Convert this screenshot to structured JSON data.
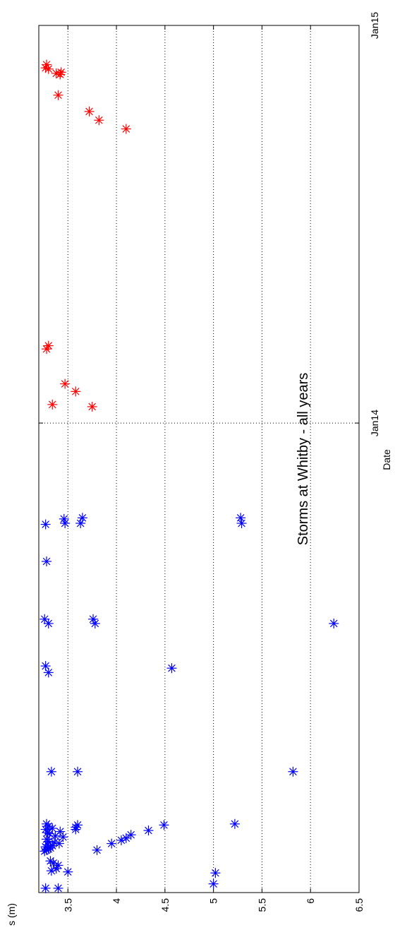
{
  "chart_data": {
    "type": "scatter",
    "title": "Storms at Whitby - all years",
    "xlabel": "Date",
    "ylabel": "Hs (m)",
    "orientation": "rotated-90-ccw",
    "x_tick_labels": [
      "Jan14",
      "Jan15"
    ],
    "y_tick_labels": [
      "3.5",
      "4",
      "4.5",
      "5",
      "5.5",
      "6",
      "6.5"
    ],
    "y_ticks": [
      3.5,
      4,
      4.5,
      5,
      5.5,
      6,
      6.5
    ],
    "ylim": [
      3.2,
      6.5
    ],
    "xlim": [
      "2012-10-27",
      "2015-01-01"
    ],
    "grid": "horizontal-dotted",
    "marker": "asterisk",
    "series": [
      {
        "color": "#0000ff",
        "points": [
          {
            "x": "2012-10-31",
            "y": 3.4
          },
          {
            "x": "2012-10-31",
            "y": 3.27
          },
          {
            "x": "2012-11-04",
            "y": 5.0
          },
          {
            "x": "2012-11-14",
            "y": 5.02
          },
          {
            "x": "2012-11-15",
            "y": 3.5
          },
          {
            "x": "2012-11-16",
            "y": 3.33
          },
          {
            "x": "2012-11-18",
            "y": 3.38
          },
          {
            "x": "2012-11-21",
            "y": 3.4
          },
          {
            "x": "2012-11-23",
            "y": 3.35
          },
          {
            "x": "2012-11-25",
            "y": 3.32
          },
          {
            "x": "2012-12-04",
            "y": 3.26
          },
          {
            "x": "2012-12-05",
            "y": 3.28
          },
          {
            "x": "2012-12-06",
            "y": 3.3
          },
          {
            "x": "2012-12-07",
            "y": 3.32
          },
          {
            "x": "2012-12-08",
            "y": 3.27
          },
          {
            "x": "2012-12-09",
            "y": 3.34
          },
          {
            "x": "2012-12-10",
            "y": 3.29
          },
          {
            "x": "2012-12-11",
            "y": 3.41
          },
          {
            "x": "2012-12-12",
            "y": 3.36
          },
          {
            "x": "2012-12-13",
            "y": 3.3
          },
          {
            "x": "2012-12-15",
            "y": 3.28
          },
          {
            "x": "2012-12-17",
            "y": 3.45
          },
          {
            "x": "2012-12-18",
            "y": 3.37
          },
          {
            "x": "2012-12-20",
            "y": 3.31
          },
          {
            "x": "2012-12-21",
            "y": 3.29
          },
          {
            "x": "2012-12-22",
            "y": 3.42
          },
          {
            "x": "2012-12-24",
            "y": 3.27
          },
          {
            "x": "2012-12-25",
            "y": 3.34
          },
          {
            "x": "2012-12-27",
            "y": 3.3
          },
          {
            "x": "2012-12-29",
            "y": 3.28
          },
          {
            "x": "2012-12-05",
            "y": 3.8
          },
          {
            "x": "2012-12-11",
            "y": 3.95
          },
          {
            "x": "2012-12-14",
            "y": 4.05
          },
          {
            "x": "2012-12-16",
            "y": 4.1
          },
          {
            "x": "2012-12-19",
            "y": 4.15
          },
          {
            "x": "2012-12-23",
            "y": 4.33
          },
          {
            "x": "2012-12-28",
            "y": 4.49
          },
          {
            "x": "2012-12-29",
            "y": 5.22
          },
          {
            "x": "2012-12-24",
            "y": 3.58
          },
          {
            "x": "2012-12-26",
            "y": 3.58
          },
          {
            "x": "2012-12-28",
            "y": 3.6
          },
          {
            "x": "2013-02-15",
            "y": 5.82
          },
          {
            "x": "2013-02-15",
            "y": 3.6
          },
          {
            "x": "2013-02-15",
            "y": 3.33
          },
          {
            "x": "2013-05-21",
            "y": 4.57
          },
          {
            "x": "2013-05-17",
            "y": 3.3
          },
          {
            "x": "2013-05-23",
            "y": 3.27
          },
          {
            "x": "2013-07-01",
            "y": 6.24
          },
          {
            "x": "2013-07-01",
            "y": 3.78
          },
          {
            "x": "2013-07-05",
            "y": 3.76
          },
          {
            "x": "2013-07-01",
            "y": 3.3
          },
          {
            "x": "2013-07-05",
            "y": 3.26
          },
          {
            "x": "2013-08-27",
            "y": 3.28
          },
          {
            "x": "2013-10-01",
            "y": 5.29
          },
          {
            "x": "2013-10-06",
            "y": 5.28
          },
          {
            "x": "2013-10-01",
            "y": 3.63
          },
          {
            "x": "2013-10-06",
            "y": 3.65
          },
          {
            "x": "2013-10-01",
            "y": 3.47
          },
          {
            "x": "2013-10-05",
            "y": 3.46
          },
          {
            "x": "2013-09-30",
            "y": 3.27
          }
        ]
      },
      {
        "color": "#ff0000",
        "points": [
          {
            "x": "2014-01-16",
            "y": 3.75
          },
          {
            "x": "2014-01-18",
            "y": 3.34
          },
          {
            "x": "2014-01-30",
            "y": 3.58
          },
          {
            "x": "2014-02-06",
            "y": 3.47
          },
          {
            "x": "2014-03-10",
            "y": 3.28
          },
          {
            "x": "2014-03-13",
            "y": 3.3
          },
          {
            "x": "2014-09-28",
            "y": 4.1
          },
          {
            "x": "2014-10-06",
            "y": 3.82
          },
          {
            "x": "2014-10-14",
            "y": 3.72
          },
          {
            "x": "2014-10-29",
            "y": 3.4
          },
          {
            "x": "2014-11-17",
            "y": 3.42
          },
          {
            "x": "2014-11-19",
            "y": 3.43
          },
          {
            "x": "2014-11-18",
            "y": 3.38
          },
          {
            "x": "2014-11-22",
            "y": 3.3
          },
          {
            "x": "2014-11-26",
            "y": 3.28
          },
          {
            "x": "2014-11-23",
            "y": 3.27
          }
        ]
      }
    ]
  }
}
